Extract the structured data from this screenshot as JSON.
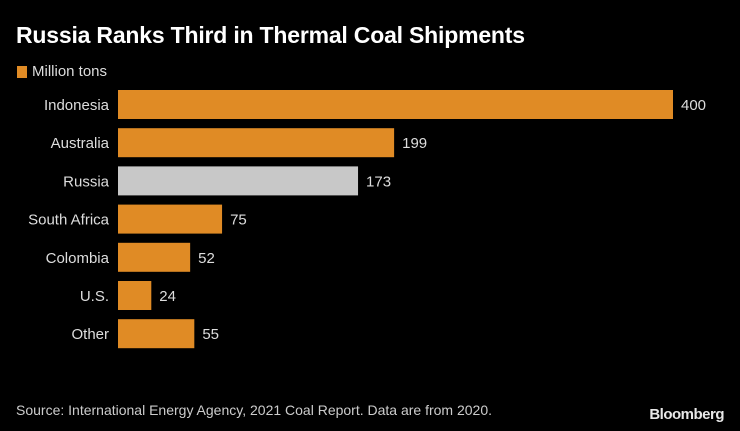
{
  "chart_data": {
    "type": "bar",
    "orientation": "horizontal",
    "title": "Russia Ranks Third in Thermal Coal Shipments",
    "categories": [
      "Indonesia",
      "Australia",
      "Russia",
      "South Africa",
      "Colombia",
      "U.S.",
      "Other"
    ],
    "series": [
      {
        "name": "Million tons",
        "values": [
          400,
          199,
          173,
          75,
          52,
          24,
          55
        ]
      }
    ],
    "highlight": "Russia",
    "colors": {
      "default": "#e08b25",
      "highlight": "#c8c8c8",
      "background": "#000000"
    },
    "xlim": [
      0,
      400
    ],
    "grid": false,
    "legend": "top-left",
    "source": "Source: International Energy Agency, 2021 Coal Report. Data are from 2020."
  },
  "branding": "Bloomberg"
}
